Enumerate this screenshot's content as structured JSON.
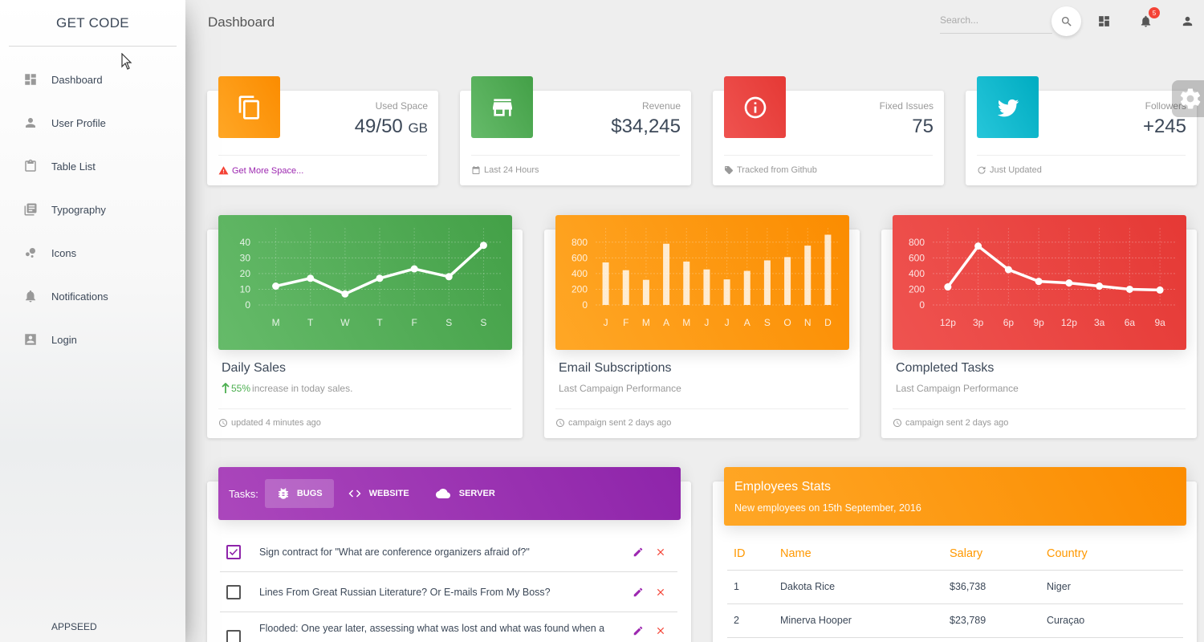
{
  "sidebar": {
    "brand": "GET CODE",
    "items": [
      {
        "label": "Dashboard",
        "icon": "dashboard-icon"
      },
      {
        "label": "User Profile",
        "icon": "person-icon"
      },
      {
        "label": "Table List",
        "icon": "clipboard-icon"
      },
      {
        "label": "Typography",
        "icon": "library-books-icon"
      },
      {
        "label": "Icons",
        "icon": "bubble-chart-icon"
      },
      {
        "label": "Notifications",
        "icon": "bell-icon"
      },
      {
        "label": "Login",
        "icon": "contact-card-icon"
      }
    ],
    "footer": "APPSEED"
  },
  "header": {
    "title": "Dashboard",
    "search_placeholder": "Search...",
    "notification_count": "5"
  },
  "stats": [
    {
      "category": "Used Space",
      "value": "49/50",
      "unit": "GB",
      "footer": "Get More Space...",
      "color": "#ff9800",
      "icon": "copy-icon",
      "footer_icon": "warning-icon"
    },
    {
      "category": "Revenue",
      "value": "$34,245",
      "unit": "",
      "footer": "Last 24 Hours",
      "color": "#4caf50",
      "icon": "store-icon",
      "footer_icon": "calendar-icon"
    },
    {
      "category": "Fixed Issues",
      "value": "75",
      "unit": "",
      "footer": "Tracked from Github",
      "color": "#f44336",
      "icon": "info-icon",
      "footer_icon": "tag-icon"
    },
    {
      "category": "Followers",
      "value": "+245",
      "unit": "",
      "footer": "Just Updated",
      "color": "#00bcd4",
      "icon": "twitter-icon",
      "footer_icon": "update-icon"
    }
  ],
  "charts": [
    {
      "title": "Daily Sales",
      "sub_pct": "55%",
      "sub_text": " increase in today sales.",
      "footer": "updated 4 minutes ago"
    },
    {
      "title": "Email Subscriptions",
      "sub_text": "Last Campaign Performance",
      "footer": "campaign sent 2 days ago"
    },
    {
      "title": "Completed Tasks",
      "sub_text": "Last Campaign Performance",
      "footer": "campaign sent 2 days ago"
    }
  ],
  "chart_data": [
    {
      "type": "line",
      "title": "Daily Sales",
      "categories": [
        "M",
        "T",
        "W",
        "T",
        "F",
        "S",
        "S"
      ],
      "values": [
        12,
        17,
        7,
        17,
        23,
        18,
        38
      ],
      "yticks": [
        "40",
        "30",
        "20",
        "10",
        "0"
      ],
      "ylim": [
        0,
        45
      ],
      "color": "#4caf50",
      "grid": true
    },
    {
      "type": "bar",
      "title": "Email Subscriptions",
      "categories": [
        "J",
        "F",
        "M",
        "A",
        "M",
        "J",
        "J",
        "A",
        "S",
        "O",
        "N",
        "D"
      ],
      "values": [
        542,
        443,
        320,
        780,
        553,
        453,
        326,
        434,
        568,
        610,
        756,
        895
      ],
      "yticks": [
        "800",
        "600",
        "400",
        "200",
        "0"
      ],
      "ylim": [
        0,
        900
      ],
      "color": "#ff9800",
      "grid": true
    },
    {
      "type": "line",
      "title": "Completed Tasks",
      "categories": [
        "12p",
        "3p",
        "6p",
        "9p",
        "12p",
        "3a",
        "6a",
        "9a"
      ],
      "values": [
        230,
        750,
        450,
        300,
        280,
        240,
        200,
        190
      ],
      "yticks": [
        "800",
        "600",
        "400",
        "200",
        "0"
      ],
      "ylim": [
        0,
        900
      ],
      "color": "#f44336",
      "grid": true
    }
  ],
  "tasks": {
    "label": "Tasks:",
    "tabs": [
      {
        "label": "BUGS",
        "icon": "bug-icon"
      },
      {
        "label": "WEBSITE",
        "icon": "code-icon"
      },
      {
        "label": "SERVER",
        "icon": "cloud-icon"
      }
    ],
    "items": [
      {
        "text": "Sign contract for \"What are conference organizers afraid of?\"",
        "checked": true
      },
      {
        "text": "Lines From Great Russian Literature? Or E-mails From My Boss?",
        "checked": false
      },
      {
        "text": "Flooded: One year later, assessing what was lost and what was found when a",
        "checked": false
      }
    ]
  },
  "employees": {
    "title": "Employees Stats",
    "subtitle": "New employees on 15th September, 2016",
    "headers": [
      "ID",
      "Name",
      "Salary",
      "Country"
    ],
    "rows": [
      [
        "1",
        "Dakota Rice",
        "$36,738",
        "Niger"
      ],
      [
        "2",
        "Minerva Hooper",
        "$23,789",
        "Curaçao"
      ]
    ]
  }
}
